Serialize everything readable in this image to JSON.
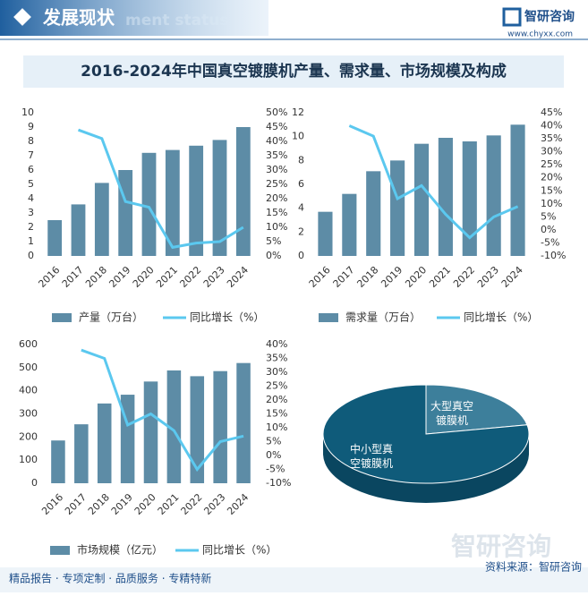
{
  "header": {
    "title": "发展现状",
    "subtitle": "ment status",
    "brand": "智研咨询",
    "url": "www.chyxx.com"
  },
  "title": "2016-2024年中国真空镀膜机产量、需求量、市场规模及构成",
  "chart_data": [
    {
      "type": "combo",
      "categories": [
        "2016",
        "2017",
        "2018",
        "2019",
        "2020",
        "2021",
        "2022",
        "2023",
        "2024"
      ],
      "series": [
        {
          "name": "产量（万台）",
          "type": "bar",
          "color": "#5d8ca6",
          "values": [
            2.5,
            3.6,
            5.1,
            6.0,
            7.2,
            7.4,
            7.7,
            8.1,
            9.0
          ]
        },
        {
          "name": "同比增长（%）",
          "type": "line",
          "axis": "y2",
          "color": "#5bc8ef",
          "values": [
            null,
            44,
            41,
            19,
            17,
            3,
            4.5,
            5,
            10
          ]
        }
      ],
      "ylim": [
        0,
        10
      ],
      "yticks": [
        0,
        1,
        2,
        3,
        4,
        5,
        6,
        7,
        8,
        9,
        10
      ],
      "y2lim": [
        0,
        50
      ],
      "y2ticks": [
        {
          "value": 0,
          "label": "0%"
        },
        {
          "value": 5,
          "label": "5%"
        },
        {
          "value": 10,
          "label": "10%"
        },
        {
          "value": 15,
          "label": "15%"
        },
        {
          "value": 20,
          "label": "20%"
        },
        {
          "value": 25,
          "label": "25%"
        },
        {
          "value": 30,
          "label": "30%"
        },
        {
          "value": 35,
          "label": "35%"
        },
        {
          "value": 40,
          "label": "40%"
        },
        {
          "value": 45,
          "label": "45%"
        },
        {
          "value": 50,
          "label": "50%"
        }
      ]
    },
    {
      "type": "combo",
      "categories": [
        "2016",
        "2017",
        "2018",
        "2019",
        "2020",
        "2021",
        "2022",
        "2023",
        "2024"
      ],
      "series": [
        {
          "name": "需求量（万台）",
          "type": "bar",
          "color": "#5d8ca6",
          "values": [
            3.7,
            5.2,
            7.1,
            8.0,
            9.4,
            9.9,
            9.6,
            10.1,
            11.0
          ]
        },
        {
          "name": "同比增长（%）",
          "type": "line",
          "axis": "y2",
          "color": "#5bc8ef",
          "values": [
            null,
            40,
            36,
            12,
            17,
            6,
            -3,
            5,
            9
          ]
        }
      ],
      "ylim": [
        0,
        12
      ],
      "yticks": [
        0,
        2,
        4,
        6,
        8,
        10,
        12
      ],
      "y2lim": [
        -10,
        45
      ],
      "y2ticks": [
        {
          "value": -10,
          "label": "-10%"
        },
        {
          "value": -5,
          "label": "-5%"
        },
        {
          "value": 0,
          "label": "0%"
        },
        {
          "value": 5,
          "label": "5%"
        },
        {
          "value": 10,
          "label": "10%"
        },
        {
          "value": 15,
          "label": "15%"
        },
        {
          "value": 20,
          "label": "20%"
        },
        {
          "value": 25,
          "label": "25%"
        },
        {
          "value": 30,
          "label": "30%"
        },
        {
          "value": 35,
          "label": "35%"
        },
        {
          "value": 40,
          "label": "40%"
        },
        {
          "value": 45,
          "label": "45%"
        }
      ]
    },
    {
      "type": "combo",
      "categories": [
        "2016",
        "2017",
        "2018",
        "2019",
        "2020",
        "2021",
        "2022",
        "2023",
        "2024"
      ],
      "series": [
        {
          "name": "市场规模（亿元）",
          "type": "bar",
          "color": "#5d8ca6",
          "values": [
            185,
            255,
            345,
            383,
            440,
            488,
            463,
            485,
            520
          ]
        },
        {
          "name": "同比增长（%）",
          "type": "line",
          "axis": "y2",
          "color": "#5bc8ef",
          "values": [
            null,
            38,
            35,
            11,
            15,
            9,
            -5,
            5,
            7
          ]
        }
      ],
      "ylim": [
        0,
        600
      ],
      "yticks": [
        0,
        100,
        200,
        300,
        400,
        500,
        600
      ],
      "y2lim": [
        -10,
        40
      ],
      "y2ticks": [
        {
          "value": -10,
          "label": "-10%"
        },
        {
          "value": -5,
          "label": "-5%"
        },
        {
          "value": 0,
          "label": "0%"
        },
        {
          "value": 5,
          "label": "5%"
        },
        {
          "value": 10,
          "label": "10%"
        },
        {
          "value": 15,
          "label": "15%"
        },
        {
          "value": 20,
          "label": "20%"
        },
        {
          "value": 25,
          "label": "25%"
        },
        {
          "value": 30,
          "label": "30%"
        },
        {
          "value": 35,
          "label": "35%"
        },
        {
          "value": 40,
          "label": "40%"
        }
      ]
    },
    {
      "type": "pie",
      "categories": [
        "大型真空镀膜机",
        "中小型真空镀膜机"
      ],
      "values": [
        22,
        78
      ],
      "colors": [
        "#3d7f9b",
        "#0f5b7a"
      ]
    }
  ],
  "watermark": "智研咨询",
  "footer": {
    "left": "精品报告 · 专项定制 · 品质服务 · 专精特新",
    "right": "资料来源：智研咨询"
  }
}
